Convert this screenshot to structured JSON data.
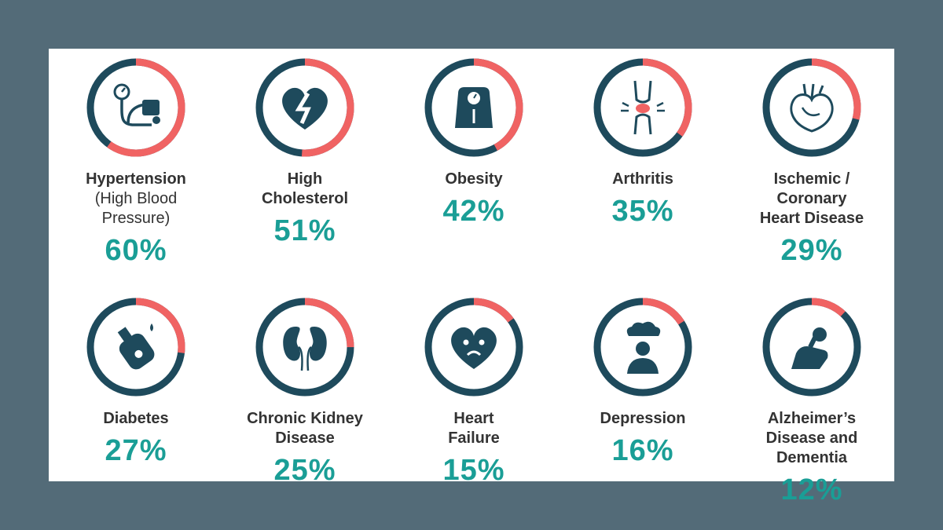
{
  "chart_data": {
    "type": "donut",
    "title": "",
    "unit": "%",
    "items": [
      {
        "label": "Hypertension",
        "sublabel": "(High Blood\nPressure)",
        "value": 60,
        "display": "60%",
        "icon": "blood-pressure-monitor-icon"
      },
      {
        "label": "High\nCholesterol",
        "sublabel": "",
        "value": 51,
        "display": "51%",
        "icon": "broken-heart-icon"
      },
      {
        "label": "Obesity",
        "sublabel": "",
        "value": 42,
        "display": "42%",
        "icon": "scale-icon"
      },
      {
        "label": "Arthritis",
        "sublabel": "",
        "value": 35,
        "display": "35%",
        "icon": "knee-joint-icon"
      },
      {
        "label": "Ischemic /\nCoronary\nHeart Disease",
        "sublabel": "",
        "value": 29,
        "display": "29%",
        "icon": "heart-organ-icon"
      },
      {
        "label": "Diabetes",
        "sublabel": "",
        "value": 27,
        "display": "27%",
        "icon": "glucose-meter-icon"
      },
      {
        "label": "Chronic Kidney\nDisease",
        "sublabel": "",
        "value": 25,
        "display": "25%",
        "icon": "kidneys-icon"
      },
      {
        "label": "Heart\nFailure",
        "sublabel": "",
        "value": 15,
        "display": "15%",
        "icon": "sad-heart-icon"
      },
      {
        "label": "Depression",
        "sublabel": "",
        "value": 16,
        "display": "16%",
        "icon": "person-cloud-icon"
      },
      {
        "label": "Alzheimer’s\nDisease and\nDementia",
        "sublabel": "",
        "value": 12,
        "display": "12%",
        "icon": "sad-person-icon"
      }
    ]
  },
  "colors": {
    "background": "#536b78",
    "card": "#ffffff",
    "ring_track": "#1e4a5c",
    "ring_value": "#f06363",
    "percent_text": "#1a9e96",
    "label_text": "#333333"
  }
}
